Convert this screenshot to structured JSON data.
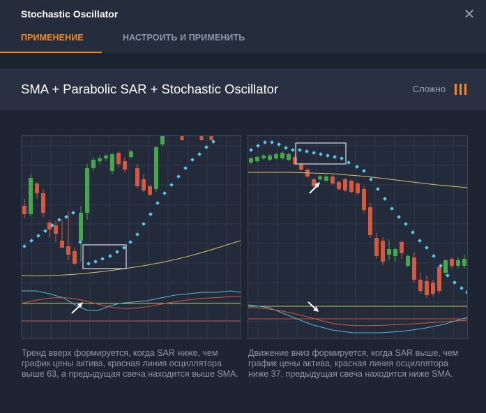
{
  "window": {
    "title": "Stochastic Oscillator",
    "close_icon": "close-icon"
  },
  "tabs": [
    {
      "label": "ПРИМЕНЕНИЕ",
      "active": true
    },
    {
      "label": "НАСТРОИТЬ И ПРИМЕНИТЬ",
      "active": false
    }
  ],
  "strategy": {
    "title": "SMA + Parabolic SAR + Stochastic Oscillator",
    "difficulty_label": "Сложно",
    "difficulty_icon": "difficulty-bars-icon",
    "difficulty_level": 3
  },
  "colors": {
    "accent": "#f08a24",
    "candle_up": "#44a84a",
    "candle_down": "#d35a40",
    "sar_dots": "#5bc8f0",
    "sma_line": "#d8c070",
    "oscillator_fast": "#5bb6d8",
    "oscillator_slow": "#d35a40",
    "level_line_upper": "#b8c868",
    "level_line_lower": "#c0504a"
  },
  "examples": [
    {
      "caption": "Тренд вверх формируется, когда SAR ниже, чем график цены актива, красная линия осциллятора выше 63, а предыдущая свеча находится выше SMA.",
      "arrow_icon": "arrow-up-right-icon"
    },
    {
      "caption": "Движение вниз формируется, когда SAR выше, чем график цены актива, красная линия осциллятора ниже 37, предыдущая свеча находится ниже SMA.",
      "arrow_icon": "arrow-down-right-icon"
    }
  ]
}
